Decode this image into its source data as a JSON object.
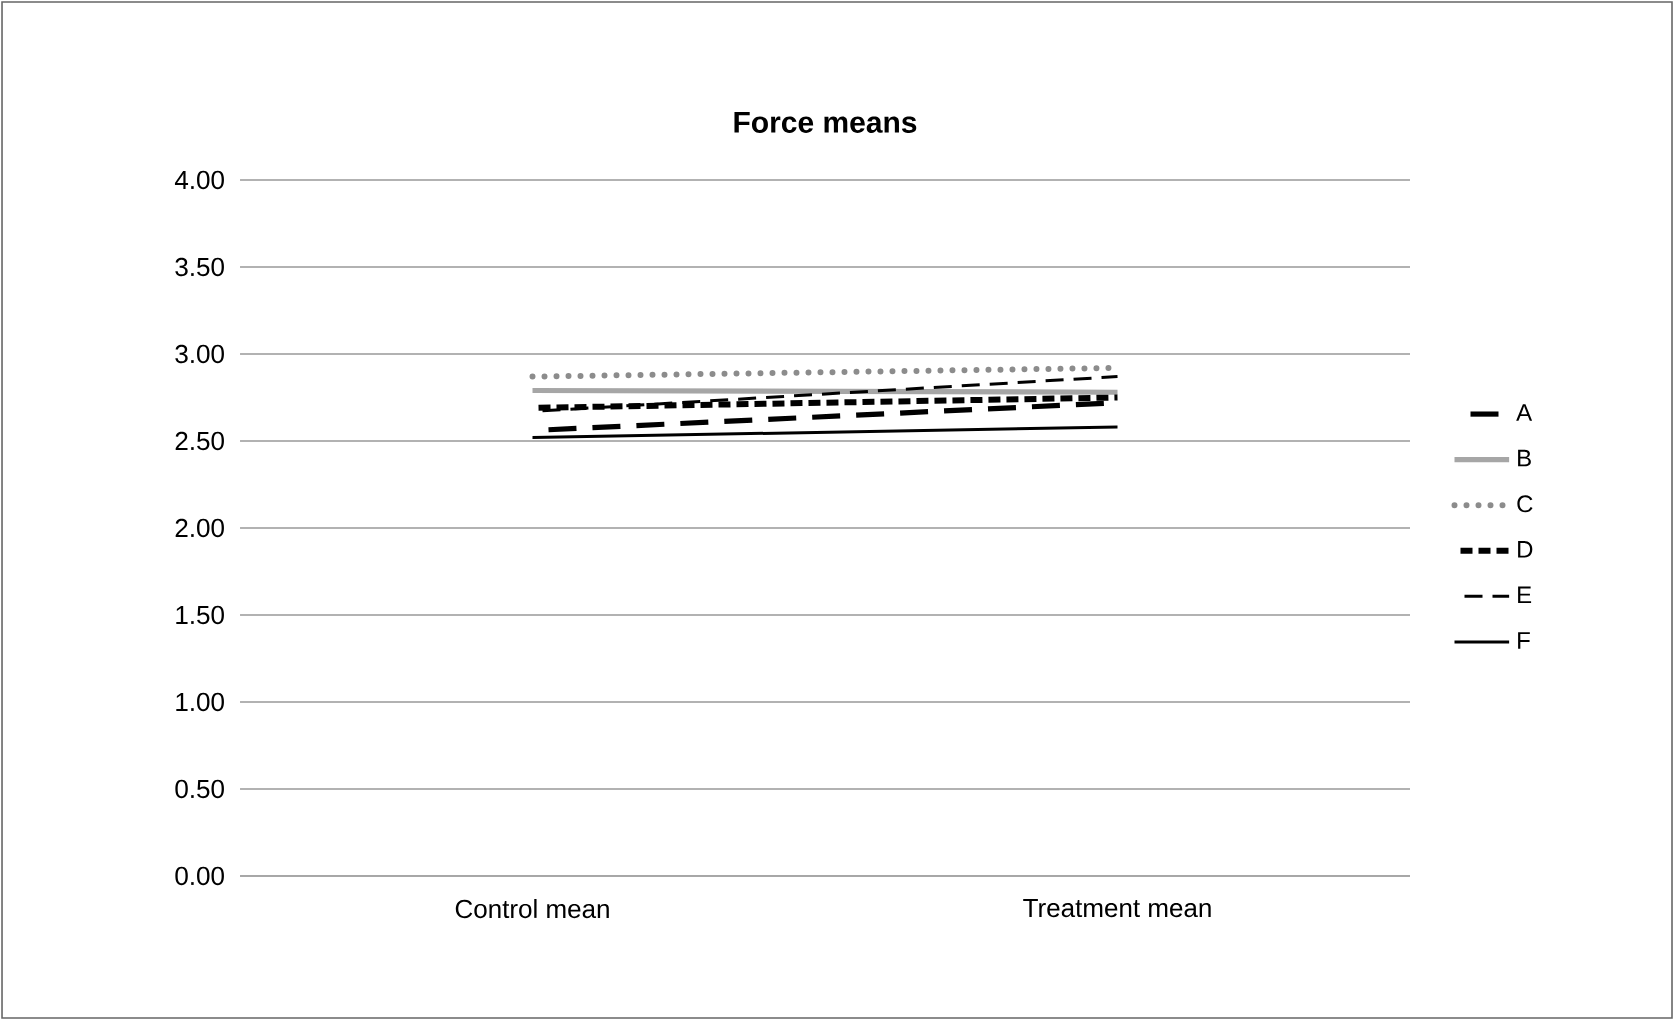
{
  "chart_data": {
    "type": "line",
    "title": "Force means",
    "categories": [
      "Control mean",
      "Treatment mean"
    ],
    "series": [
      {
        "name": "A",
        "color": "#000000",
        "values": [
          2.56,
          2.72
        ],
        "line_style": "dashed"
      },
      {
        "name": "B",
        "color": "#a6a6a6",
        "values": [
          2.79,
          2.78
        ],
        "line_style": "solid"
      },
      {
        "name": "C",
        "color": "#8c8c8c",
        "values": [
          2.87,
          2.92
        ],
        "line_style": "dotted"
      },
      {
        "name": "D",
        "color": "#000000",
        "values": [
          2.69,
          2.75
        ],
        "line_style": "dashed"
      },
      {
        "name": "E",
        "color": "#000000",
        "values": [
          2.67,
          2.87
        ],
        "line_style": "dashed"
      },
      {
        "name": "F",
        "color": "#000000",
        "values": [
          2.52,
          2.58
        ],
        "line_style": "solid"
      }
    ],
    "ylim": [
      0,
      4
    ],
    "yticks": [
      {
        "value": 0,
        "label": "0.00"
      },
      {
        "value": 0.5,
        "label": "0.50"
      },
      {
        "value": 1,
        "label": "1.00"
      },
      {
        "value": 1.5,
        "label": "1.50"
      },
      {
        "value": 2,
        "label": "2.00"
      },
      {
        "value": 2.5,
        "label": "2.50"
      },
      {
        "value": 3,
        "label": "3.00"
      },
      {
        "value": 3.5,
        "label": "3.50"
      },
      {
        "value": 4,
        "label": "4.00"
      }
    ],
    "grid": "y",
    "legend": "right",
    "marker": "none"
  }
}
